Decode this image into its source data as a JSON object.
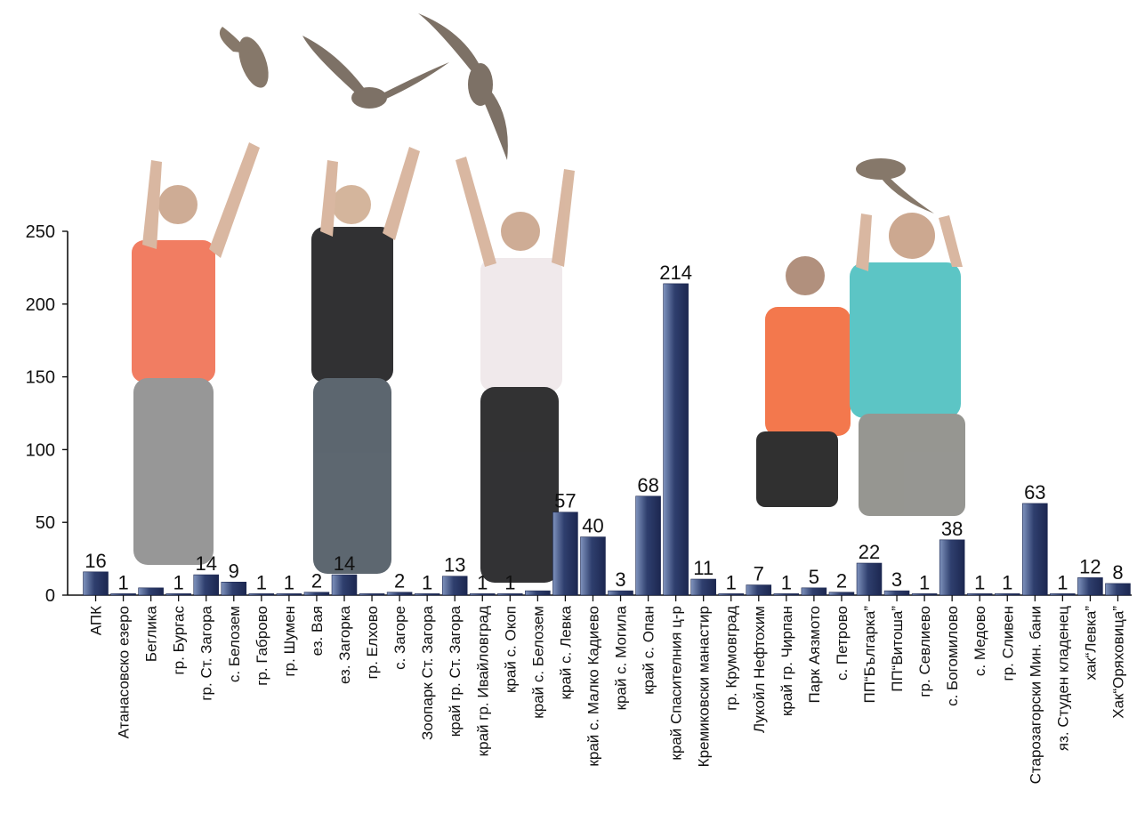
{
  "chart_data": {
    "type": "bar",
    "title": "",
    "xlabel": "",
    "ylabel": "",
    "ylim": [
      0,
      250
    ],
    "yticks": [
      0,
      50,
      100,
      150,
      200,
      250
    ],
    "grid": false,
    "legend": "none",
    "colors": {
      "bar": "#2f3f6e",
      "bar_light": "#7f93bd",
      "axis": "#111111"
    },
    "categories": [
      "АПК",
      "Атанасовско езеро",
      "Беглика",
      "гр. Бургас",
      "гр. Ст. Загора",
      "с. Белозем",
      "гр. Габрово",
      "гр. Шумен",
      "ез. Вая",
      "ез. Загорка",
      "гр. Елхово",
      "с. Загоре",
      "Зоопарк Ст. Загора",
      "край гр. Ст. Загора",
      "край гр. Ивайловград",
      "край с. Окоп",
      "край с. Белозем",
      "край с. Левка",
      "край с. Малко Кадиево",
      "край с. Могила",
      "край с. Опан",
      "край Спасителния ц-р",
      "Кремиковски манастир",
      "гр. Крумовград",
      "Лукойл Нефтохим",
      "край гр. Чирпан",
      "Парк Аязмото",
      "с. Петрово",
      "ПП“Българка”",
      "ПП“Витоша”",
      "гр. Севлиево",
      "с. Богомилово",
      "с. Медово",
      "гр. Сливен",
      "Старозагорски Мин. бани",
      "яз. Студен кладенец",
      "хак“Левка”",
      "Хак“Оряховица”"
    ],
    "values": [
      16,
      1,
      5,
      1,
      14,
      9,
      1,
      1,
      2,
      14,
      1,
      2,
      1,
      13,
      1,
      1,
      3,
      57,
      40,
      3,
      68,
      214,
      11,
      1,
      7,
      1,
      5,
      2,
      22,
      3,
      1,
      38,
      1,
      1,
      63,
      1,
      12,
      8
    ],
    "value_labels": [
      "16",
      "1",
      "",
      "1",
      "14",
      "9",
      "1",
      "1",
      "2",
      "14",
      "",
      "2",
      "1",
      "13",
      "1",
      "1",
      "",
      "57",
      "40",
      "3",
      "68",
      "214",
      "11",
      "1",
      "7",
      "1",
      "5",
      "2",
      "22",
      "3",
      "1",
      "38",
      "1",
      "1",
      "63",
      "1",
      "12",
      "8"
    ]
  },
  "illustration": {
    "icons": [
      "falcon-icon",
      "girl-icon",
      "woman-icon",
      "boy-icon",
      "man-icon"
    ]
  }
}
